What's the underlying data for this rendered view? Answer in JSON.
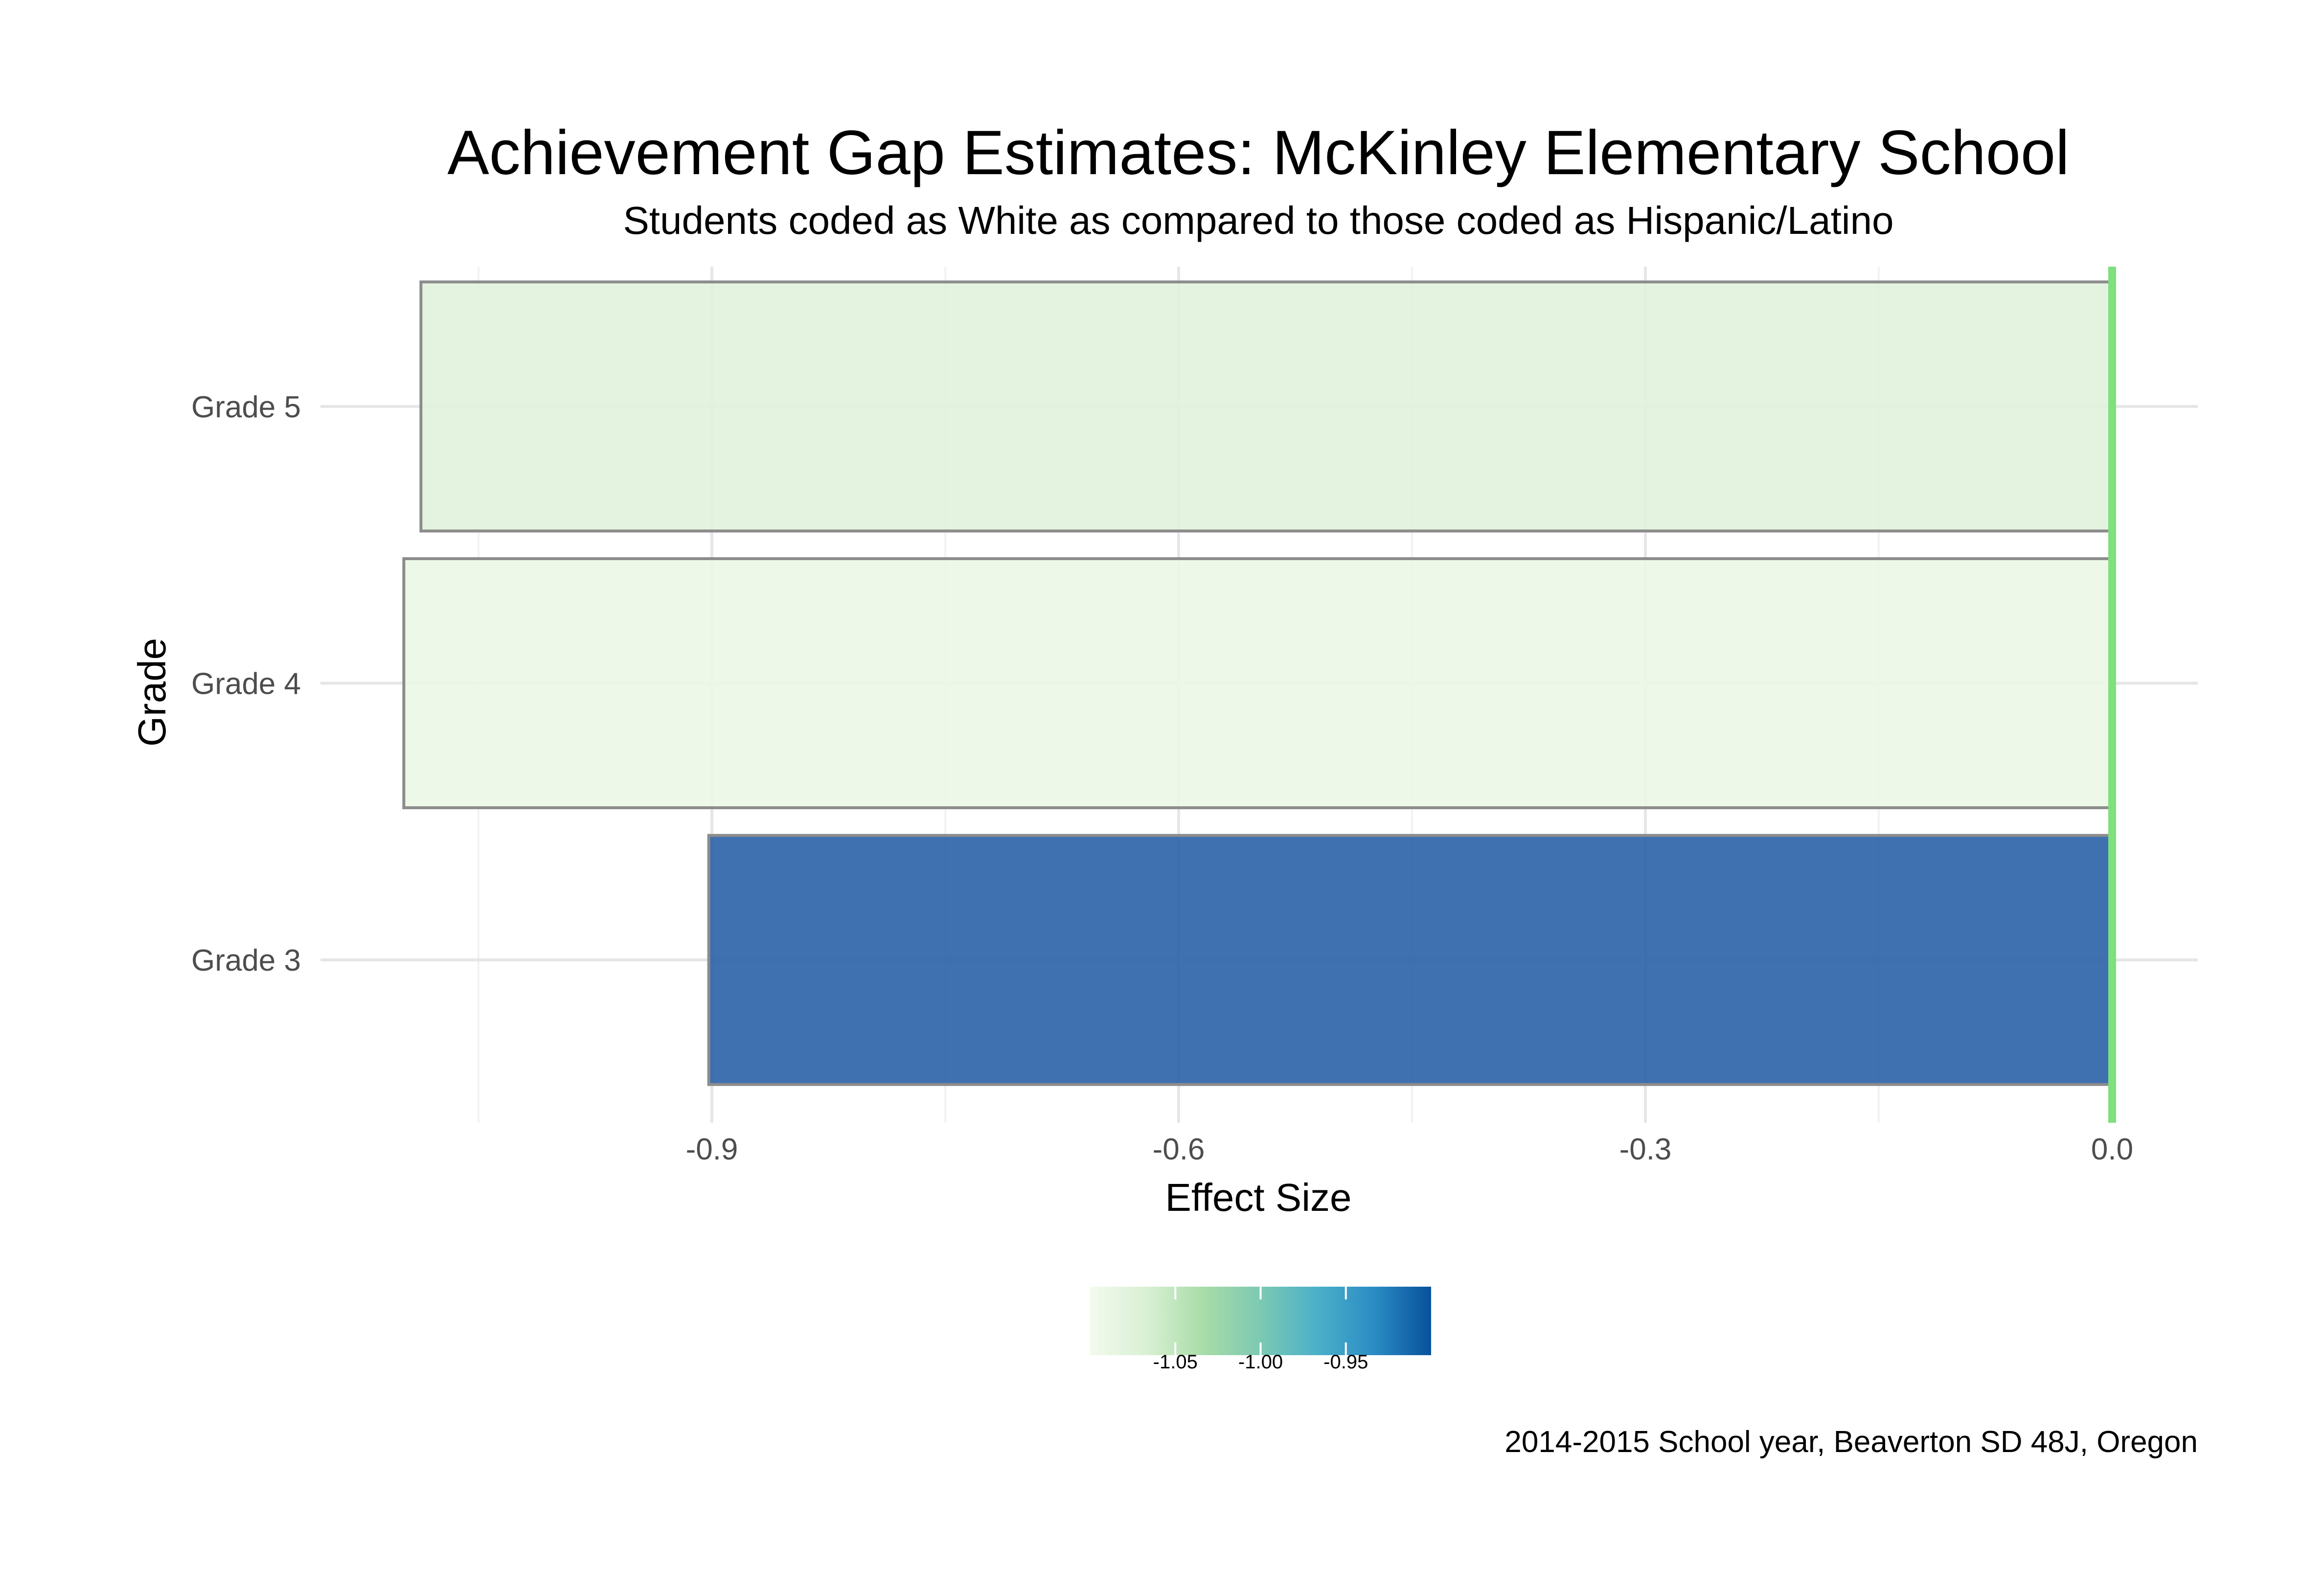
{
  "chart_data": {
    "type": "bar",
    "orientation": "horizontal",
    "title": "Achievement Gap Estimates: McKinley Elementary School",
    "subtitle": "Students coded as White as compared to those coded as Hispanic/Latino",
    "xlabel": "Effect Size",
    "ylabel": "Grade",
    "caption": "2014-2015 School year, Beaverton SD 48J, Oregon",
    "categories": [
      "Grade 3",
      "Grade 4",
      "Grade 5"
    ],
    "values": [
      -0.902,
      -1.098,
      -1.087
    ],
    "xlim": [
      -1.1,
      0.05
    ],
    "xticks": [
      -0.9,
      -0.6,
      -0.3,
      0.0
    ],
    "xtick_labels": [
      "-0.9",
      "-0.6",
      "-0.3",
      "0.0"
    ],
    "reference_line": {
      "x": 0.0,
      "color": "#7ee07e"
    },
    "grid": true,
    "fill_colors": [
      "#2a62a8",
      "#ebf7e7",
      "#e0f2dc"
    ],
    "bar_border_color": "#8c8c8c",
    "legend": {
      "type": "colorbar",
      "placement": "bottom",
      "range": [
        -1.1,
        -0.9
      ],
      "ticks": [
        -1.05,
        -1.0,
        -0.95
      ],
      "tick_labels": [
        "-1.05",
        "-1.00",
        "-0.95"
      ],
      "gradient": [
        "#f3faee",
        "#d9f0d3",
        "#a8dca8",
        "#7cc9b3",
        "#4bb0c8",
        "#2b8cc4",
        "#08519c"
      ]
    }
  }
}
